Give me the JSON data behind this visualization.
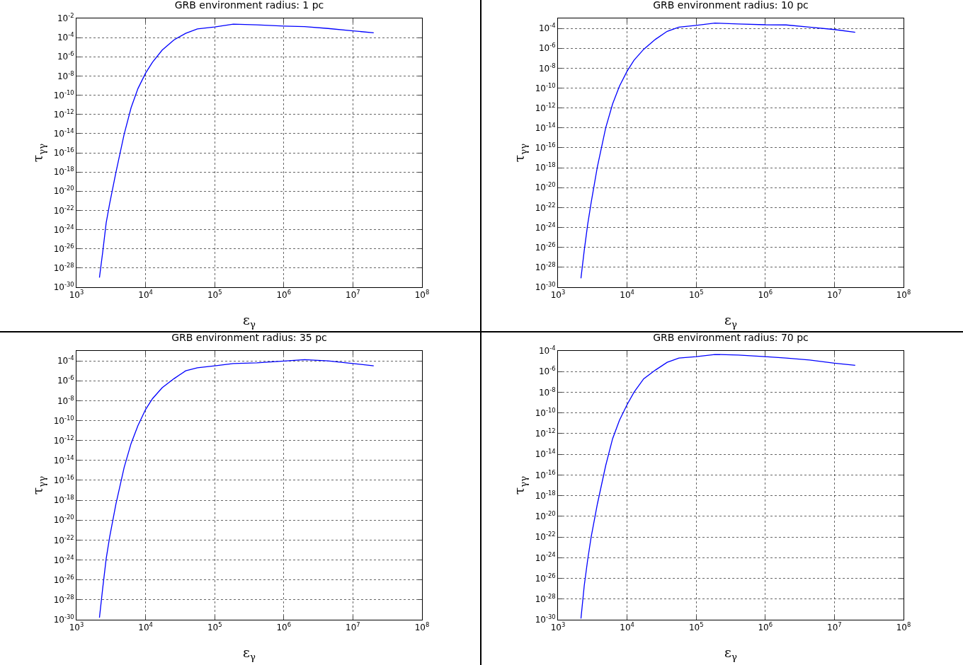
{
  "chart_data": [
    {
      "type": "line",
      "title": "GRB environment radius: 1 pc",
      "xlabel": "ε$_{γ}$",
      "ylabel": "τ$_{γγ}$",
      "log": "xy",
      "grid": true,
      "xlim": [
        1000,
        100000000
      ],
      "ylim": [
        1e-30,
        0.01
      ],
      "xticks": [
        {
          "value": 1000,
          "label": "10$^{3}$"
        },
        {
          "value": 10000,
          "label": "10$^{4}$"
        },
        {
          "value": 100000,
          "label": "10$^{5}$"
        },
        {
          "value": 1000000,
          "label": "10$^{6}$"
        },
        {
          "value": 10000000,
          "label": "10$^{7}$"
        },
        {
          "value": 100000000,
          "label": "10$^{8}$"
        }
      ],
      "yticks": [
        {
          "value": 1e-30,
          "label": "10$^{-30}$"
        },
        {
          "value": 1e-28,
          "label": "10$^{-28}$"
        },
        {
          "value": 1e-26,
          "label": "10$^{-26}$"
        },
        {
          "value": 1e-24,
          "label": "10$^{-24}$"
        },
        {
          "value": 1e-22,
          "label": "10$^{-22}$"
        },
        {
          "value": 1e-20,
          "label": "10$^{-20}$"
        },
        {
          "value": 1e-18,
          "label": "10$^{-18}$"
        },
        {
          "value": 1e-16,
          "label": "10$^{-16}$"
        },
        {
          "value": 1e-14,
          "label": "10$^{-14}$"
        },
        {
          "value": 1e-12,
          "label": "10$^{-12}$"
        },
        {
          "value": 1e-10,
          "label": "10$^{-10}$"
        },
        {
          "value": 1e-08,
          "label": "10$^{-8}$"
        },
        {
          "value": 1e-06,
          "label": "10$^{-6}$"
        },
        {
          "value": 0.0001,
          "label": "10$^{-4}$"
        },
        {
          "value": 0.01,
          "label": "10$^{-2}$"
        }
      ],
      "x": [
        2150,
        2400,
        2690,
        3020,
        3720,
        4900,
        6170,
        7760,
        10000,
        12600,
        17400,
        25700,
        38000,
        56200,
        100000,
        186000,
        407000,
        1000000,
        2000000,
        4370000,
        10000000,
        20000000
      ],
      "series": [
        {
          "color": "#0000ff",
          "values": [
            1e-29,
            5e-27,
            5e-24,
            5e-22,
            8.9e-19,
            8.9e-15,
            5e-12,
            5e-10,
            2e-08,
            2.8e-07,
            5e-06,
            5.6e-05,
            0.00028,
            0.00079,
            0.0013,
            0.0025,
            0.0021,
            0.0016,
            0.0014,
            0.00089,
            0.0005,
            0.00032
          ]
        }
      ]
    },
    {
      "type": "line",
      "title": "GRB environment radius: 10 pc",
      "xlabel": "ε$_{γ}$",
      "ylabel": "τ$_{γγ}$",
      "log": "xy",
      "grid": true,
      "xlim": [
        1000,
        100000000
      ],
      "ylim": [
        1e-30,
        0.001
      ],
      "xticks": [
        {
          "value": 1000,
          "label": "10$^{3}$"
        },
        {
          "value": 10000,
          "label": "10$^{4}$"
        },
        {
          "value": 100000,
          "label": "10$^{5}$"
        },
        {
          "value": 1000000,
          "label": "10$^{6}$"
        },
        {
          "value": 10000000,
          "label": "10$^{7}$"
        },
        {
          "value": 100000000,
          "label": "10$^{8}$"
        }
      ],
      "yticks": [
        {
          "value": 1e-30,
          "label": "10$^{-30}$"
        },
        {
          "value": 1e-28,
          "label": "10$^{-28}$"
        },
        {
          "value": 1e-26,
          "label": "10$^{-26}$"
        },
        {
          "value": 1e-24,
          "label": "10$^{-24}$"
        },
        {
          "value": 1e-22,
          "label": "10$^{-22}$"
        },
        {
          "value": 1e-20,
          "label": "10$^{-20}$"
        },
        {
          "value": 1e-18,
          "label": "10$^{-18}$"
        },
        {
          "value": 1e-16,
          "label": "10$^{-16}$"
        },
        {
          "value": 1e-14,
          "label": "10$^{-14}$"
        },
        {
          "value": 1e-12,
          "label": "10$^{-12}$"
        },
        {
          "value": 1e-10,
          "label": "10$^{-10}$"
        },
        {
          "value": 1e-08,
          "label": "10$^{-8}$"
        },
        {
          "value": 1e-06,
          "label": "10$^{-6}$"
        },
        {
          "value": 0.0001,
          "label": "10$^{-4}$"
        }
      ],
      "x": [
        2150,
        2400,
        2690,
        3020,
        3720,
        4900,
        6170,
        7760,
        10000,
        12600,
        17400,
        25700,
        38000,
        56200,
        100000,
        186000,
        407000,
        1000000,
        2000000,
        4370000,
        10000000,
        20000000
      ],
      "series": [
        {
          "color": "#0000ff",
          "values": [
            7.9e-30,
            5e-27,
            2e-24,
            3.2e-22,
            1.3e-18,
            1e-14,
            2.5e-12,
            1.6e-10,
            5e-09,
            6.3e-08,
            7.9e-07,
            7.9e-06,
            5e-05,
            0.00013,
            0.0002,
            0.00034,
            0.00028,
            0.00023,
            0.00022,
            0.00013,
            7.6e-05,
            4.1e-05
          ]
        }
      ]
    },
    {
      "type": "line",
      "title": "GRB environment radius: 35 pc",
      "xlabel": "ε$_{γ}$",
      "ylabel": "τ$_{γγ}$",
      "log": "xy",
      "grid": true,
      "xlim": [
        1000,
        100000000
      ],
      "ylim": [
        1e-30,
        0.001
      ],
      "xticks": [
        {
          "value": 1000,
          "label": "10$^{3}$"
        },
        {
          "value": 10000,
          "label": "10$^{4}$"
        },
        {
          "value": 100000,
          "label": "10$^{5}$"
        },
        {
          "value": 1000000,
          "label": "10$^{6}$"
        },
        {
          "value": 10000000,
          "label": "10$^{7}$"
        },
        {
          "value": 100000000,
          "label": "10$^{8}$"
        }
      ],
      "yticks": [
        {
          "value": 1e-30,
          "label": "10$^{-30}$"
        },
        {
          "value": 1e-28,
          "label": "10$^{-28}$"
        },
        {
          "value": 1e-26,
          "label": "10$^{-26}$"
        },
        {
          "value": 1e-24,
          "label": "10$^{-24}$"
        },
        {
          "value": 1e-22,
          "label": "10$^{-22}$"
        },
        {
          "value": 1e-20,
          "label": "10$^{-20}$"
        },
        {
          "value": 1e-18,
          "label": "10$^{-18}$"
        },
        {
          "value": 1e-16,
          "label": "10$^{-16}$"
        },
        {
          "value": 1e-14,
          "label": "10$^{-14}$"
        },
        {
          "value": 1e-12,
          "label": "10$^{-12}$"
        },
        {
          "value": 1e-10,
          "label": "10$^{-10}$"
        },
        {
          "value": 1e-08,
          "label": "10$^{-8}$"
        },
        {
          "value": 1e-06,
          "label": "10$^{-6}$"
        },
        {
          "value": 0.0001,
          "label": "10$^{-4}$"
        }
      ],
      "x": [
        2150,
        2400,
        2690,
        3020,
        3720,
        4900,
        6170,
        7760,
        10000,
        12600,
        17400,
        25700,
        38000,
        56200,
        100000,
        186000,
        407000,
        1000000,
        2000000,
        4370000,
        10000000,
        20000000
      ],
      "series": [
        {
          "color": "#0000ff",
          "values": [
            1.6e-30,
            1.6e-27,
            1.3e-24,
            2e-22,
            4e-19,
            2e-15,
            5e-13,
            3.2e-11,
            1.3e-09,
            1.6e-08,
            2e-07,
            1.6e-06,
            1e-05,
            2e-05,
            3.2e-05,
            5.4e-05,
            6.3e-05,
            9.5e-05,
            0.00013,
            0.0001,
            5.4e-05,
            3.2e-05
          ]
        }
      ]
    },
    {
      "type": "line",
      "title": "GRB environment radius: 70 pc",
      "xlabel": "ε$_{γ}$",
      "ylabel": "τ$_{γγ}$",
      "log": "xy",
      "grid": true,
      "xlim": [
        1000,
        100000000
      ],
      "ylim": [
        1e-30,
        0.0001
      ],
      "xticks": [
        {
          "value": 1000,
          "label": "10$^{3}$"
        },
        {
          "value": 10000,
          "label": "10$^{4}$"
        },
        {
          "value": 100000,
          "label": "10$^{5}$"
        },
        {
          "value": 1000000,
          "label": "10$^{6}$"
        },
        {
          "value": 10000000,
          "label": "10$^{7}$"
        },
        {
          "value": 100000000,
          "label": "10$^{8}$"
        }
      ],
      "yticks": [
        {
          "value": 1e-30,
          "label": "10$^{-30}$"
        },
        {
          "value": 1e-28,
          "label": "10$^{-28}$"
        },
        {
          "value": 1e-26,
          "label": "10$^{-26}$"
        },
        {
          "value": 1e-24,
          "label": "10$^{-24}$"
        },
        {
          "value": 1e-22,
          "label": "10$^{-22}$"
        },
        {
          "value": 1e-20,
          "label": "10$^{-20}$"
        },
        {
          "value": 1e-18,
          "label": "10$^{-18}$"
        },
        {
          "value": 1e-16,
          "label": "10$^{-16}$"
        },
        {
          "value": 1e-14,
          "label": "10$^{-14}$"
        },
        {
          "value": 1e-12,
          "label": "10$^{-12}$"
        },
        {
          "value": 1e-10,
          "label": "10$^{-10}$"
        },
        {
          "value": 1e-08,
          "label": "10$^{-8}$"
        },
        {
          "value": 1e-06,
          "label": "10$^{-6}$"
        },
        {
          "value": 0.0001,
          "label": "10$^{-4}$"
        }
      ],
      "x": [
        2150,
        2400,
        2690,
        3020,
        3720,
        4900,
        6170,
        7760,
        10000,
        12600,
        17400,
        25700,
        38000,
        56200,
        100000,
        186000,
        407000,
        1000000,
        2000000,
        4370000,
        10000000,
        20000000
      ],
      "series": [
        {
          "color": "#0000ff",
          "values": [
            1.3e-30,
            2e-27,
            6.3e-25,
            1e-22,
            1.6e-19,
            7.9e-16,
            3.2e-13,
            2e-11,
            6.3e-10,
            1e-08,
            2e-07,
            1.4e-06,
            7.9e-06,
            2e-05,
            2.8e-05,
            4.5e-05,
            4e-05,
            2.8e-05,
            2e-05,
            1.3e-05,
            6.5e-06,
            4e-06
          ]
        }
      ]
    }
  ]
}
